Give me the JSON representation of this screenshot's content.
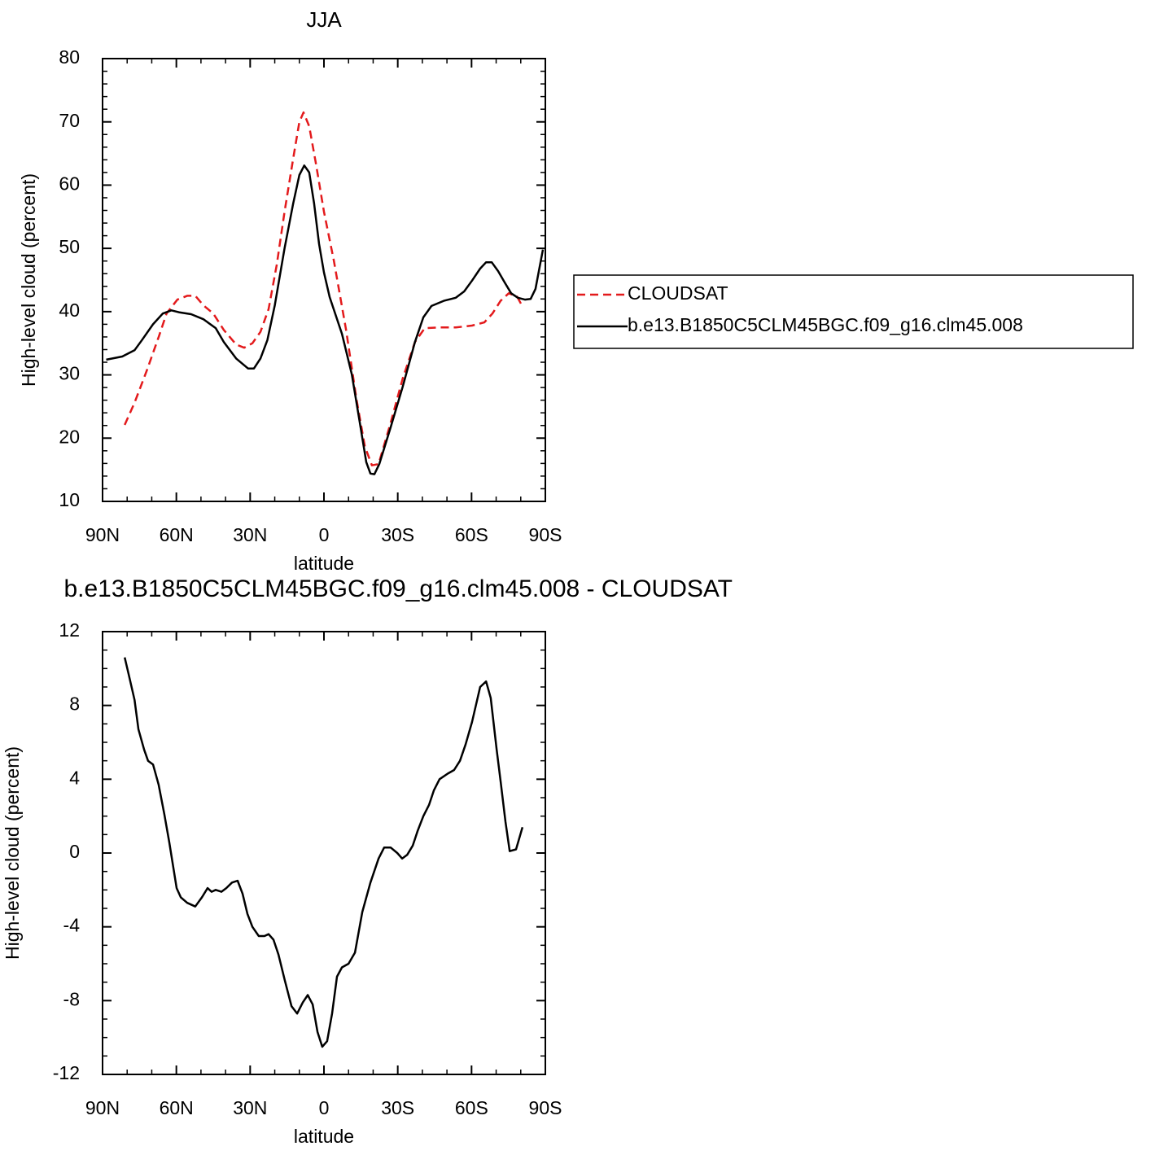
{
  "chart_data": [
    {
      "type": "line",
      "title": "JJA",
      "xlabel": "latitude",
      "ylabel": "High-level cloud (percent)",
      "xlim": [
        90,
        -90
      ],
      "xticks": [
        {
          "value": 90,
          "label": "90N"
        },
        {
          "value": 60,
          "label": "60N"
        },
        {
          "value": 30,
          "label": "30N"
        },
        0,
        {
          "value": -30,
          "label": "30S"
        },
        {
          "value": -60,
          "label": "60S"
        },
        {
          "value": -90,
          "label": "90S"
        }
      ],
      "ylim": [
        10,
        80
      ],
      "yticks": [
        10,
        20,
        30,
        40,
        50,
        60,
        70,
        80
      ],
      "legend": "right",
      "series": [
        {
          "name": "CLOUDSAT",
          "color": "#e31a1c",
          "line_style": "dashed",
          "x": [
            81,
            77,
            72,
            67,
            64,
            59.6,
            55.6,
            52.3,
            49,
            45,
            40.7,
            35.7,
            32.4,
            29.1,
            25.8,
            22.5,
            19.2,
            16,
            12.5,
            10,
            8.3,
            6,
            3.3,
            0,
            -4,
            -9,
            -13.2,
            -16.6,
            -19.5,
            -22.2,
            -27.1,
            -32,
            -37,
            -41,
            -47,
            -53.6,
            -60.2,
            -65.2,
            -68.5,
            -71.8,
            -75.1,
            -78.5,
            -81
          ],
          "values": [
            22.1,
            25.6,
            30.7,
            36.2,
            39.7,
            41.9,
            42.5,
            42.5,
            41.0,
            39.7,
            37.1,
            34.8,
            34.3,
            35.0,
            36.8,
            40.4,
            47.4,
            55.8,
            64.2,
            70.0,
            71.5,
            69.3,
            63.5,
            55.8,
            48.1,
            37.1,
            26.2,
            18.7,
            15.7,
            15.9,
            22.4,
            29.4,
            35.2,
            37.4,
            37.5,
            37.5,
            37.8,
            38.3,
            39.7,
            41.7,
            42.9,
            42.4,
            40.6
          ]
        },
        {
          "name": "b.e13.B1850C5CLM45BGC.f09_g16.clm45.008",
          "color": "#000000",
          "line_style": "solid",
          "x": [
            88.5,
            82,
            77,
            74,
            69.5,
            65.5,
            62,
            59,
            54,
            49,
            44,
            40.7,
            35.7,
            30.8,
            28.5,
            25.8,
            23,
            20,
            16,
            12.5,
            10,
            8,
            6,
            4,
            2,
            0,
            -2.3,
            -7.3,
            -11.3,
            -14.6,
            -17.2,
            -18.9,
            -20.5,
            -22.5,
            -27.1,
            -32,
            -37,
            -40.4,
            -43.7,
            -48.7,
            -53.6,
            -57,
            -60.2,
            -63.5,
            -65.9,
            -68.2,
            -70.8,
            -73.5,
            -76.1,
            -78.8,
            -81.7,
            -84,
            -86,
            -89
          ],
          "values": [
            32.4,
            32.9,
            33.9,
            35.5,
            38.0,
            39.7,
            40.2,
            39.9,
            39.6,
            38.8,
            37.4,
            35.2,
            32.6,
            31.0,
            31.0,
            32.6,
            35.5,
            41.0,
            50.0,
            57.1,
            61.6,
            63.1,
            62.0,
            57.1,
            50.7,
            46.2,
            42.3,
            36.5,
            30.1,
            22.4,
            16.2,
            14.4,
            14.3,
            15.9,
            21.7,
            28.1,
            35.2,
            39.1,
            40.9,
            41.7,
            42.2,
            43.2,
            44.9,
            46.8,
            47.8,
            47.8,
            46.4,
            44.6,
            42.9,
            42.2,
            41.9,
            42.0,
            43.6,
            49.8
          ]
        }
      ]
    },
    {
      "type": "line",
      "title": "b.e13.B1850C5CLM45BGC.f09_g16.clm45.008 - CLOUDSAT",
      "xlabel": "latitude",
      "ylabel": "High-level cloud (percent)",
      "xlim": [
        90,
        -90
      ],
      "xticks": [
        {
          "value": 90,
          "label": "90N"
        },
        {
          "value": 60,
          "label": "60N"
        },
        {
          "value": 30,
          "label": "30N"
        },
        0,
        {
          "value": -30,
          "label": "30S"
        },
        {
          "value": -60,
          "label": "60S"
        },
        {
          "value": -90,
          "label": "90S"
        }
      ],
      "ylim": [
        -12,
        12
      ],
      "yticks": [
        -12,
        -8,
        -4,
        0,
        4,
        8,
        12
      ],
      "series": [
        {
          "color": "#000000",
          "line_style": "solid",
          "x": [
            81,
            79.4,
            77,
            75.4,
            73.1,
            71.5,
            69.5,
            67.2,
            64.9,
            62.9,
            59.9,
            58.2,
            55.6,
            52.3,
            49.6,
            47.3,
            45.7,
            44,
            41.7,
            39.7,
            37.4,
            35.1,
            33.1,
            31.1,
            29.1,
            26.5,
            24.2,
            22.5,
            20.5,
            18.5,
            15.9,
            13.2,
            10.9,
            8.6,
            6.6,
            4.6,
            2.6,
            0.7,
            -1.3,
            -3.3,
            -5.3,
            -7.3,
            -10,
            -12.6,
            -15.6,
            -18.9,
            -22.2,
            -24.5,
            -27.1,
            -29.8,
            -31.8,
            -33.8,
            -36.1,
            -38.1,
            -40.4,
            -42.7,
            -44.7,
            -47,
            -50.3,
            -52.9,
            -55.3,
            -57.6,
            -60.2,
            -63.5,
            -65.9,
            -67.8,
            -70.2,
            -71.8,
            -73.8,
            -75.5,
            -78.1,
            -80.7
          ],
          "values": [
            10.6,
            9.7,
            8.3,
            6.7,
            5.6,
            5.0,
            4.8,
            3.7,
            2.1,
            0.6,
            -1.9,
            -2.4,
            -2.7,
            -2.9,
            -2.4,
            -1.9,
            -2.1,
            -2.0,
            -2.1,
            -1.9,
            -1.6,
            -1.5,
            -2.2,
            -3.3,
            -4.0,
            -4.5,
            -4.5,
            -4.4,
            -4.7,
            -5.5,
            -6.9,
            -8.3,
            -8.7,
            -8.1,
            -7.7,
            -8.2,
            -9.7,
            -10.5,
            -10.2,
            -8.7,
            -6.7,
            -6.2,
            -6.0,
            -5.4,
            -3.2,
            -1.6,
            -0.3,
            0.3,
            0.3,
            0.0,
            -0.3,
            -0.1,
            0.4,
            1.2,
            2.0,
            2.6,
            3.4,
            4.0,
            4.3,
            4.5,
            5.0,
            5.9,
            7.1,
            9.0,
            9.3,
            8.4,
            5.6,
            3.9,
            1.7,
            0.1,
            0.2,
            1.4
          ]
        }
      ]
    }
  ]
}
